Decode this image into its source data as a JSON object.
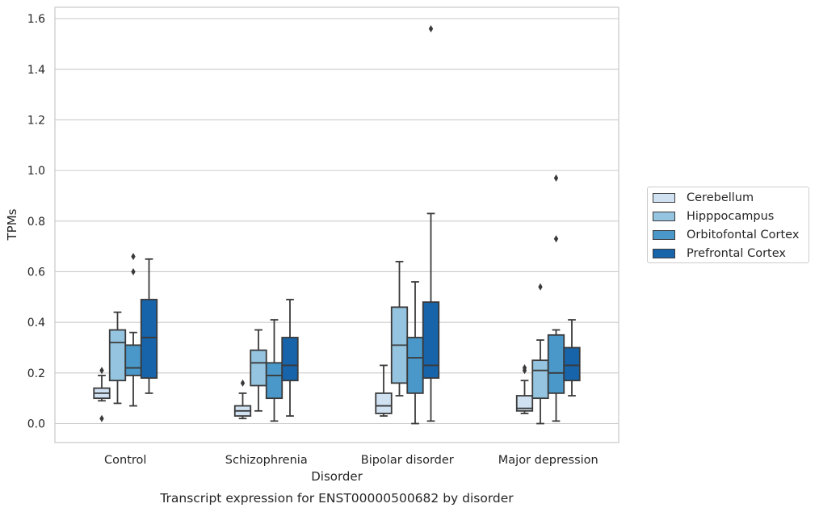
{
  "chart_data": {
    "type": "box",
    "caption": "Transcript expression for ENST00000500682 by disorder",
    "xlabel": "Disorder",
    "ylabel": "TPMs",
    "ylim": [
      -0.075,
      1.645
    ],
    "yticks": [
      0.0,
      0.2,
      0.4,
      0.6,
      0.8,
      1.0,
      1.2,
      1.4,
      1.6
    ],
    "ytick_labels": [
      "0.0",
      "0.2",
      "0.4",
      "0.6",
      "0.8",
      "1.0",
      "1.2",
      "1.4",
      "1.6"
    ],
    "grid": "horizontal",
    "legend_position": "right",
    "categories": [
      "Control",
      "Schizophrenia",
      "Bipolar disorder",
      "Major depression"
    ],
    "series": [
      {
        "name": "Cerebellum",
        "color": "#d0e1f2",
        "boxes": [
          {
            "whislo": 0.09,
            "q1": 0.1,
            "med": 0.12,
            "q3": 0.14,
            "whishi": 0.19,
            "fliers": [
              0.21,
              0.02
            ]
          },
          {
            "whislo": 0.02,
            "q1": 0.03,
            "med": 0.05,
            "q3": 0.07,
            "whishi": 0.12,
            "fliers": [
              0.16
            ]
          },
          {
            "whislo": 0.03,
            "q1": 0.04,
            "med": 0.07,
            "q3": 0.12,
            "whishi": 0.23,
            "fliers": []
          },
          {
            "whislo": 0.04,
            "q1": 0.05,
            "med": 0.06,
            "q3": 0.11,
            "whishi": 0.17,
            "fliers": [
              0.21,
              0.22
            ]
          }
        ]
      },
      {
        "name": "Hipppocampus",
        "color": "#94c4df",
        "boxes": [
          {
            "whislo": 0.08,
            "q1": 0.17,
            "med": 0.32,
            "q3": 0.37,
            "whishi": 0.44,
            "fliers": []
          },
          {
            "whislo": 0.05,
            "q1": 0.15,
            "med": 0.24,
            "q3": 0.29,
            "whishi": 0.37,
            "fliers": []
          },
          {
            "whislo": 0.11,
            "q1": 0.16,
            "med": 0.31,
            "q3": 0.46,
            "whishi": 0.64,
            "fliers": []
          },
          {
            "whislo": 0.0,
            "q1": 0.1,
            "med": 0.21,
            "q3": 0.25,
            "whishi": 0.33,
            "fliers": [
              0.54
            ]
          }
        ]
      },
      {
        "name": "Orbitofontal Cortex",
        "color": "#4a98c9",
        "boxes": [
          {
            "whislo": 0.07,
            "q1": 0.19,
            "med": 0.22,
            "q3": 0.31,
            "whishi": 0.36,
            "fliers": [
              0.66,
              0.6
            ]
          },
          {
            "whislo": 0.01,
            "q1": 0.1,
            "med": 0.19,
            "q3": 0.24,
            "whishi": 0.41,
            "fliers": []
          },
          {
            "whislo": 0.0,
            "q1": 0.12,
            "med": 0.26,
            "q3": 0.34,
            "whishi": 0.56,
            "fliers": []
          },
          {
            "whislo": 0.01,
            "q1": 0.12,
            "med": 0.2,
            "q3": 0.35,
            "whishi": 0.37,
            "fliers": [
              0.97,
              0.73
            ]
          }
        ]
      },
      {
        "name": "Prefrontal Cortex",
        "color": "#1764ab",
        "boxes": [
          {
            "whislo": 0.12,
            "q1": 0.18,
            "med": 0.34,
            "q3": 0.49,
            "whishi": 0.65,
            "fliers": []
          },
          {
            "whislo": 0.03,
            "q1": 0.17,
            "med": 0.23,
            "q3": 0.34,
            "whishi": 0.49,
            "fliers": []
          },
          {
            "whislo": 0.01,
            "q1": 0.18,
            "med": 0.23,
            "q3": 0.48,
            "whishi": 0.83,
            "fliers": [
              1.56
            ]
          },
          {
            "whislo": 0.11,
            "q1": 0.17,
            "med": 0.23,
            "q3": 0.3,
            "whishi": 0.41,
            "fliers": []
          }
        ]
      }
    ]
  }
}
